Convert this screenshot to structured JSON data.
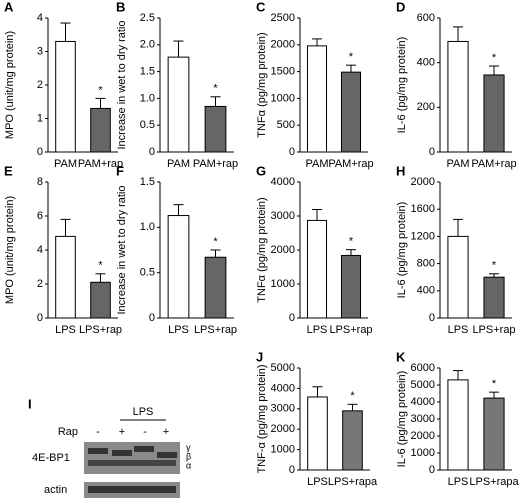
{
  "chart_data": [
    {
      "panel": "A",
      "type": "bar",
      "ylabel": "MPO (unit/mg protein)",
      "categories": [
        "PAM",
        "PAM+rap"
      ],
      "values": [
        3.3,
        1.3
      ],
      "errors": [
        0.55,
        0.3
      ],
      "colors": [
        "#ffffff",
        "#666666"
      ],
      "marks": [
        null,
        "*"
      ],
      "ylim": [
        0,
        4
      ],
      "yticks": [
        0,
        1,
        2,
        3,
        4
      ]
    },
    {
      "panel": "B",
      "type": "bar",
      "ylabel": "Increase in wet to dry ratio",
      "categories": [
        "PAM",
        "PAM+rap"
      ],
      "values": [
        1.77,
        0.85
      ],
      "errors": [
        0.3,
        0.18
      ],
      "colors": [
        "#ffffff",
        "#666666"
      ],
      "marks": [
        null,
        "*"
      ],
      "ylim": [
        0,
        2.5
      ],
      "yticks": [
        0,
        0.5,
        {
          "value": 1,
          "label": "1.0"
        },
        1.5,
        {
          "value": 2,
          "label": "2.0"
        },
        2.5
      ]
    },
    {
      "panel": "C",
      "type": "bar",
      "ylabel": "TNFα (pg/mg protein)",
      "categories": [
        "PAM",
        "PAM+rap"
      ],
      "values": [
        1980,
        1490
      ],
      "errors": [
        130,
        130
      ],
      "colors": [
        "#ffffff",
        "#666666"
      ],
      "marks": [
        null,
        "*"
      ],
      "ylim": [
        0,
        2500
      ],
      "yticks": [
        0,
        500,
        1000,
        1500,
        2000,
        2500
      ]
    },
    {
      "panel": "D",
      "type": "bar",
      "ylabel": "IL-6 (pg/mg protein)",
      "categories": [
        "PAM",
        "PAM+rap"
      ],
      "values": [
        495,
        345
      ],
      "errors": [
        65,
        40
      ],
      "colors": [
        "#ffffff",
        "#666666"
      ],
      "marks": [
        null,
        "*"
      ],
      "ylim": [
        0,
        600
      ],
      "yticks": [
        0,
        200,
        400,
        600
      ]
    },
    {
      "panel": "E",
      "type": "bar",
      "ylabel": "MPO (unit/mg protein)",
      "categories": [
        "LPS",
        "LPS+rap"
      ],
      "values": [
        4.8,
        2.1
      ],
      "errors": [
        1.0,
        0.5
      ],
      "colors": [
        "#ffffff",
        "#666666"
      ],
      "marks": [
        null,
        "*"
      ],
      "ylim": [
        0,
        8
      ],
      "yticks": [
        0,
        2,
        4,
        6,
        8
      ]
    },
    {
      "panel": "F",
      "type": "bar",
      "ylabel": "Increase in wet to dry ratio",
      "categories": [
        "LPS",
        "LPS+rap"
      ],
      "values": [
        1.13,
        0.67
      ],
      "errors": [
        0.12,
        0.08
      ],
      "colors": [
        "#ffffff",
        "#666666"
      ],
      "marks": [
        null,
        "*"
      ],
      "ylim": [
        0,
        1.5
      ],
      "yticks": [
        0,
        0.5,
        {
          "value": 1,
          "label": "1.0"
        },
        1.5
      ]
    },
    {
      "panel": "G",
      "type": "bar",
      "ylabel": "TNFα (pg/mg protein)",
      "categories": [
        "LPS",
        "LPS+rap"
      ],
      "values": [
        2870,
        1840
      ],
      "errors": [
        320,
        170
      ],
      "colors": [
        "#ffffff",
        "#666666"
      ],
      "marks": [
        null,
        "*"
      ],
      "ylim": [
        0,
        4000
      ],
      "yticks": [
        0,
        1000,
        2000,
        3000,
        4000
      ]
    },
    {
      "panel": "H",
      "type": "bar",
      "ylabel": "IL-6 (pg/mg protein)",
      "categories": [
        "LPS",
        "LPS+rap"
      ],
      "values": [
        1200,
        600
      ],
      "errors": [
        250,
        50
      ],
      "colors": [
        "#ffffff",
        "#666666"
      ],
      "marks": [
        null,
        "*"
      ],
      "ylim": [
        0,
        2000
      ],
      "yticks": [
        0,
        400,
        800,
        1200,
        1600,
        2000
      ]
    },
    {
      "panel": "J",
      "type": "bar",
      "ylabel": "TNF-α (pg/mg protein)",
      "categories": [
        "LPS",
        "LPS+rapa"
      ],
      "values": [
        3580,
        2900
      ],
      "errors": [
        500,
        320
      ],
      "colors": [
        "#ffffff",
        "#777777"
      ],
      "marks": [
        null,
        "*"
      ],
      "ylim": [
        0,
        5000
      ],
      "yticks": [
        0,
        1000,
        2000,
        3000,
        4000,
        5000
      ]
    },
    {
      "panel": "K",
      "type": "bar",
      "ylabel": "IL-6 (pg/mg protein)",
      "categories": [
        "LPS",
        "LPS+rapa"
      ],
      "values": [
        5300,
        4230
      ],
      "errors": [
        550,
        350
      ],
      "colors": [
        "#ffffff",
        "#777777"
      ],
      "marks": [
        null,
        "*"
      ],
      "ylim": [
        0,
        6000
      ],
      "yticks": [
        0,
        1000,
        2000,
        3000,
        4000,
        5000,
        6000
      ]
    }
  ],
  "blot": {
    "panel": "I",
    "group_label": "LPS",
    "row_label": "Rap",
    "lane_signs": [
      "-",
      "+",
      "-",
      "+"
    ],
    "bands": [
      "4E-BP1",
      "actin"
    ],
    "isoforms": [
      "γ",
      "β",
      "α"
    ]
  }
}
